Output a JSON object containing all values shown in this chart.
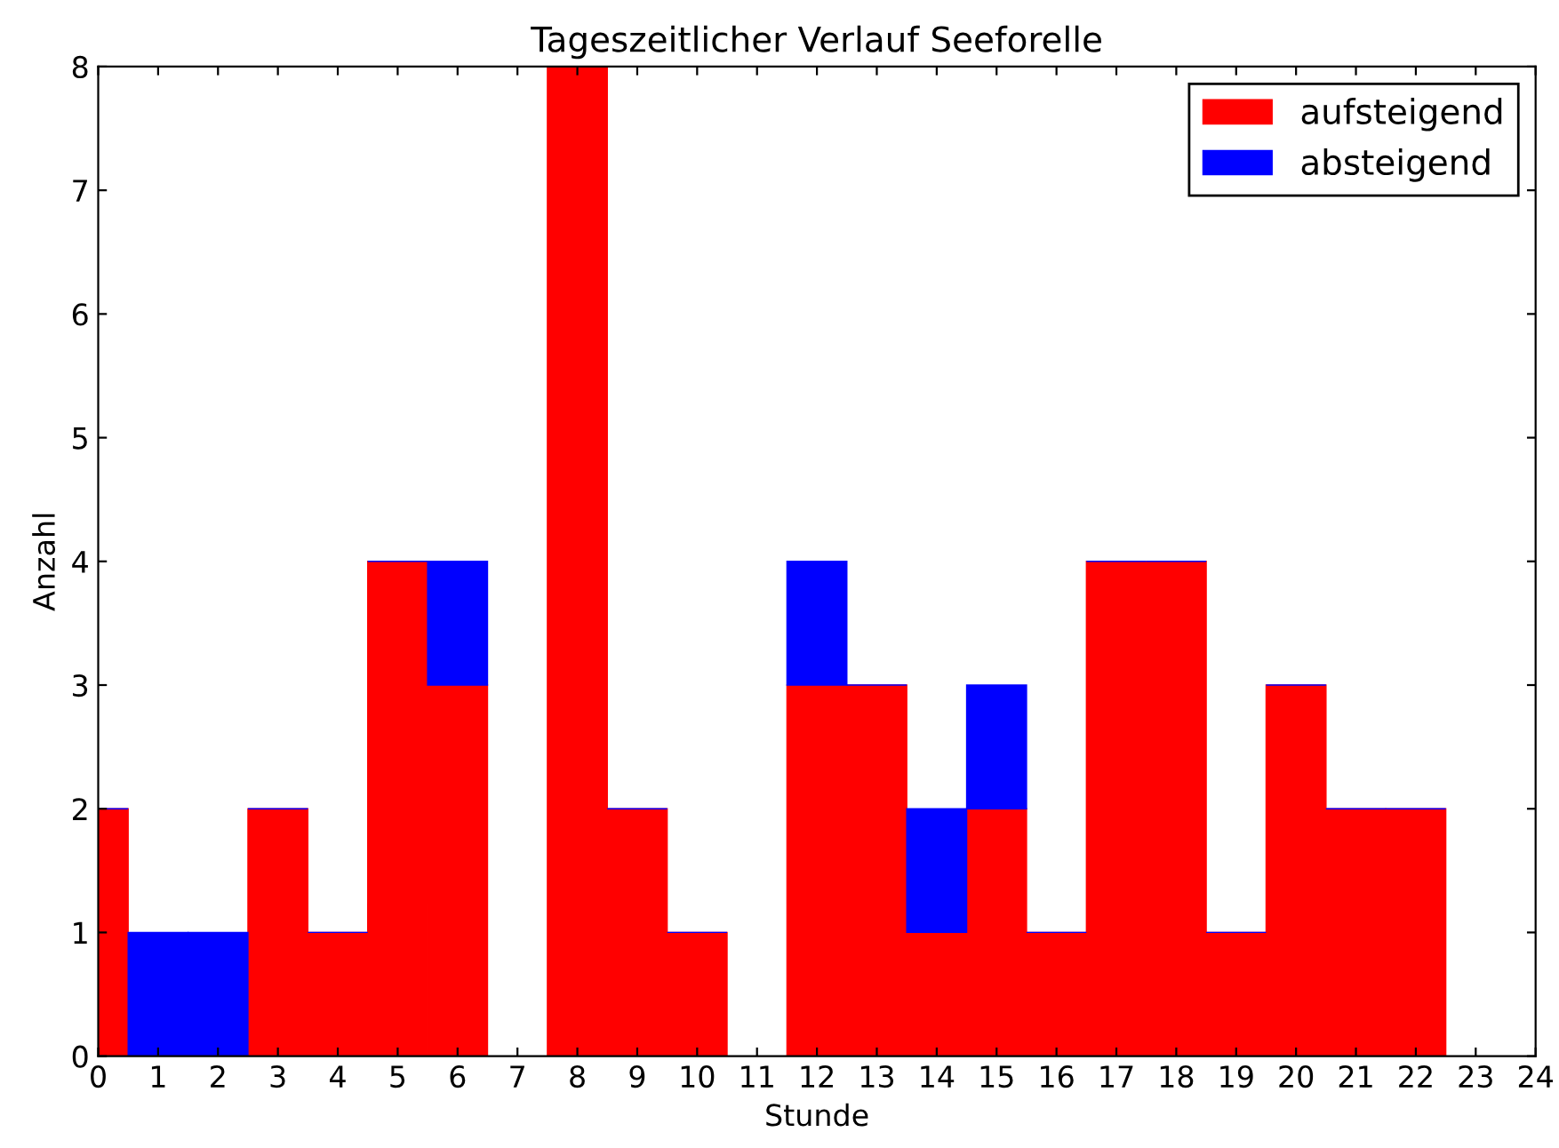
{
  "chart_data": {
    "type": "bar",
    "title": "Tageszeitlicher Verlauf Seeforelle",
    "xlabel": "Stunde",
    "ylabel": "Anzahl",
    "stacked": true,
    "x": [
      0,
      1,
      2,
      3,
      4,
      5,
      6,
      7,
      8,
      9,
      10,
      11,
      12,
      13,
      14,
      15,
      16,
      17,
      18,
      19,
      20,
      21,
      22,
      23
    ],
    "series": [
      {
        "name": "aufsteigend",
        "color": "#ff0000",
        "values": [
          2,
          0,
          0,
          2,
          1,
          4,
          3,
          0,
          8,
          2,
          1,
          0,
          3,
          3,
          1,
          2,
          1,
          4,
          4,
          1,
          3,
          2,
          2,
          0
        ]
      },
      {
        "name": "absteigend",
        "color": "#0000ff",
        "values": [
          0,
          1,
          1,
          0,
          0,
          0,
          1,
          0,
          0,
          0,
          0,
          0,
          1,
          0,
          1,
          1,
          0,
          0,
          0,
          0,
          0,
          0,
          0,
          0
        ]
      }
    ],
    "xlim": [
      0,
      24
    ],
    "xticks": [
      0,
      1,
      2,
      3,
      4,
      5,
      6,
      7,
      8,
      9,
      10,
      11,
      12,
      13,
      14,
      15,
      16,
      17,
      18,
      19,
      20,
      21,
      22,
      23,
      24
    ],
    "ylim": [
      0,
      8
    ],
    "yticks": [
      0,
      1,
      2,
      3,
      4,
      5,
      6,
      7,
      8
    ],
    "grid": false,
    "legend": "top right"
  }
}
